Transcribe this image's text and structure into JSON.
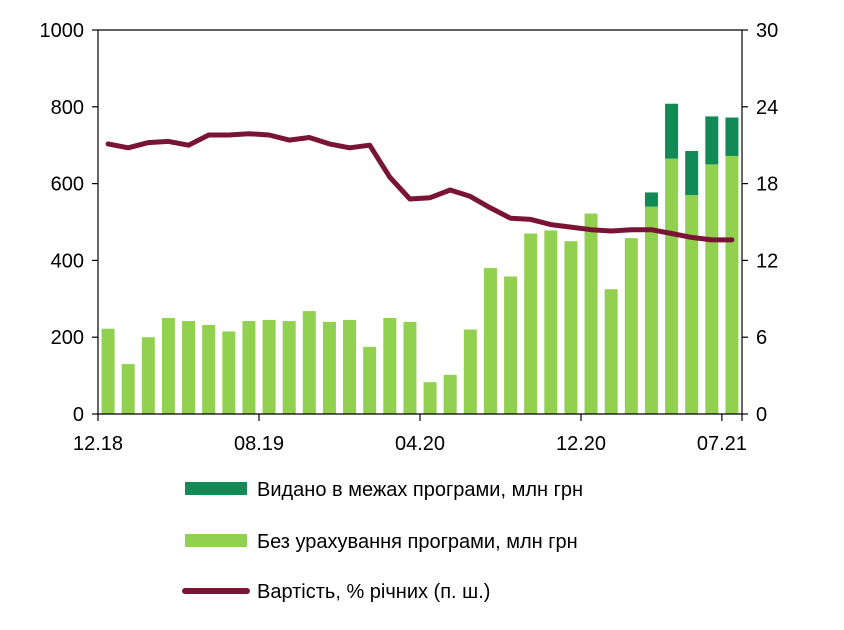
{
  "chart_data": {
    "type": "bar",
    "stacked": true,
    "x_tick_labels": [
      "12.18",
      "08.19",
      "04.20",
      "12.20",
      "07.21"
    ],
    "y_left": {
      "ticks": [
        "0",
        "200",
        "400",
        "600",
        "800",
        "1000"
      ],
      "range": [
        0,
        1000
      ]
    },
    "y_right": {
      "ticks": [
        "0",
        "6",
        "12",
        "18",
        "24",
        "30"
      ],
      "range": [
        0,
        30
      ]
    },
    "grid": false,
    "legend_position": "bottom",
    "months": [
      "12.18",
      "01.19",
      "02.19",
      "03.19",
      "04.19",
      "05.19",
      "06.19",
      "07.19",
      "08.19",
      "09.19",
      "10.19",
      "11.19",
      "12.19",
      "01.20",
      "02.20",
      "03.20",
      "04.20",
      "05.20",
      "06.20",
      "07.20",
      "08.20",
      "09.20",
      "10.20",
      "11.20",
      "12.20",
      "01.21",
      "02.21",
      "03.21",
      "04.21",
      "05.21",
      "06.21",
      "07.21"
    ],
    "series": [
      {
        "name": "Без урахування програми, млн грн",
        "axis": "left",
        "color": "#92D050",
        "values": [
          222,
          130,
          200,
          250,
          242,
          232,
          215,
          242,
          245,
          242,
          268,
          240,
          245,
          175,
          250,
          240,
          83,
          102,
          220,
          380,
          358,
          470,
          478,
          450,
          522,
          325,
          458,
          540,
          665,
          570,
          650,
          672
        ]
      },
      {
        "name": "Видано в межах програми, млн грн",
        "axis": "left",
        "color": "#128A55",
        "values": [
          0,
          0,
          0,
          0,
          0,
          0,
          0,
          0,
          0,
          0,
          0,
          0,
          0,
          0,
          0,
          0,
          0,
          0,
          0,
          0,
          0,
          0,
          0,
          0,
          0,
          0,
          0,
          37,
          143,
          115,
          125,
          100
        ]
      },
      {
        "name": "Вартість, % річних (п. ш.)",
        "axis": "right",
        "type": "line",
        "color": "#7A1435",
        "values": [
          21.1,
          20.8,
          21.2,
          21.3,
          21.0,
          21.8,
          21.8,
          21.9,
          21.8,
          21.4,
          21.6,
          21.1,
          20.8,
          21.0,
          18.5,
          16.8,
          16.9,
          17.5,
          17.0,
          16.1,
          15.3,
          15.2,
          14.8,
          14.6,
          14.4,
          14.3,
          14.4,
          14.4,
          14.1,
          13.8,
          13.6,
          13.6
        ]
      }
    ]
  }
}
